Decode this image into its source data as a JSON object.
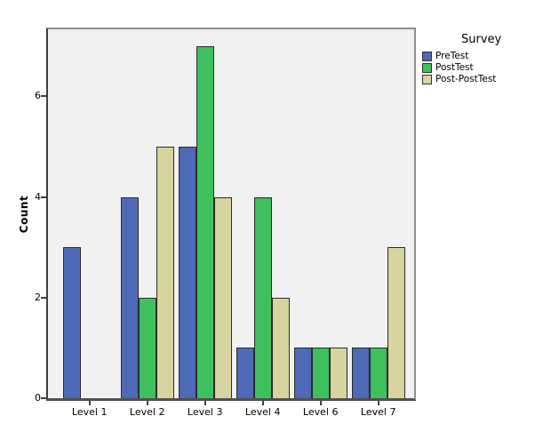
{
  "chart_data": {
    "type": "bar",
    "title": "",
    "ylabel": "Count",
    "xlabel": "",
    "categories": [
      "Level 1",
      "Level 2",
      "Level 3",
      "Level 4",
      "Level 6",
      "Level 7"
    ],
    "series": [
      {
        "name": "PreTest",
        "color": "#4e6ab6",
        "values": [
          3,
          4,
          5,
          1,
          1,
          1
        ]
      },
      {
        "name": "PostTest",
        "color": "#3ec05e",
        "values": [
          0,
          2,
          7,
          4,
          1,
          1
        ]
      },
      {
        "name": "Post-PostTest",
        "color": "#d8d4a0",
        "values": [
          0,
          5,
          4,
          2,
          1,
          3
        ]
      }
    ],
    "y_ticks": [
      0,
      2,
      4,
      6
    ],
    "ylim": [
      0,
      7.35
    ],
    "grid": false,
    "legend_title": "Survey",
    "legend_position": "right",
    "plot_background": "#f1f1f1",
    "bar_border_color": "#2a2a2a",
    "axis_line_color": "#4f4f4f"
  }
}
